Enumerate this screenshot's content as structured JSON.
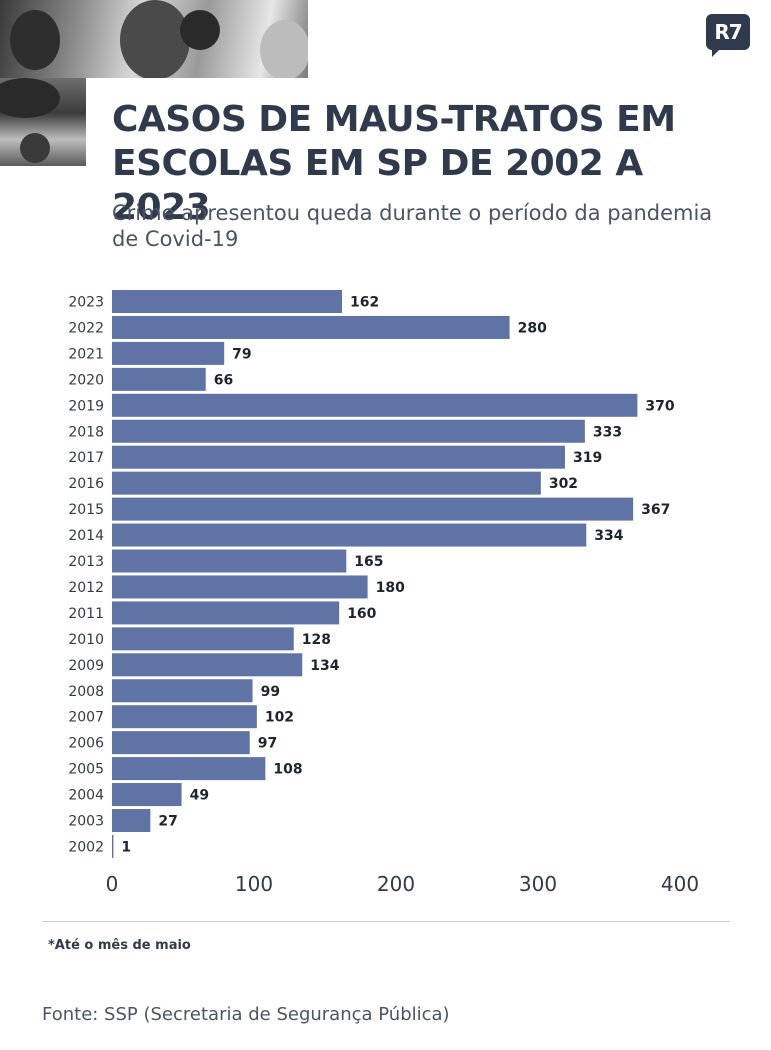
{
  "header": {
    "title": "CASOS DE MAUS-TRATOS EM ESCOLAS EM SP DE 2002 A 2023",
    "subtitle": "Crime apresentou queda durante o período da pandemia de Covid-19",
    "logo_text": "R7"
  },
  "colors": {
    "bar": "#5f73a5",
    "title": "#2f3a4c",
    "text": "#333a4a"
  },
  "chart_data": {
    "type": "bar",
    "orientation": "horizontal",
    "categories": [
      "2023",
      "2022",
      "2021",
      "2020",
      "2019",
      "2018",
      "2017",
      "2016",
      "2015",
      "2014",
      "2013",
      "2012",
      "2011",
      "2010",
      "2009",
      "2008",
      "2007",
      "2006",
      "2005",
      "2004",
      "2003",
      "2002"
    ],
    "values": [
      162,
      280,
      79,
      66,
      370,
      333,
      319,
      302,
      367,
      334,
      165,
      180,
      160,
      128,
      134,
      99,
      102,
      97,
      108,
      49,
      27,
      1
    ],
    "xlim": [
      0,
      400
    ],
    "xticks": [
      0,
      100,
      200,
      300,
      400
    ],
    "grid": false,
    "xlabel": "",
    "ylabel": ""
  },
  "footer": {
    "note": "*Até o mês de maio",
    "source": "Fonte: SSP (Secretaria de Segurança Pública)"
  }
}
